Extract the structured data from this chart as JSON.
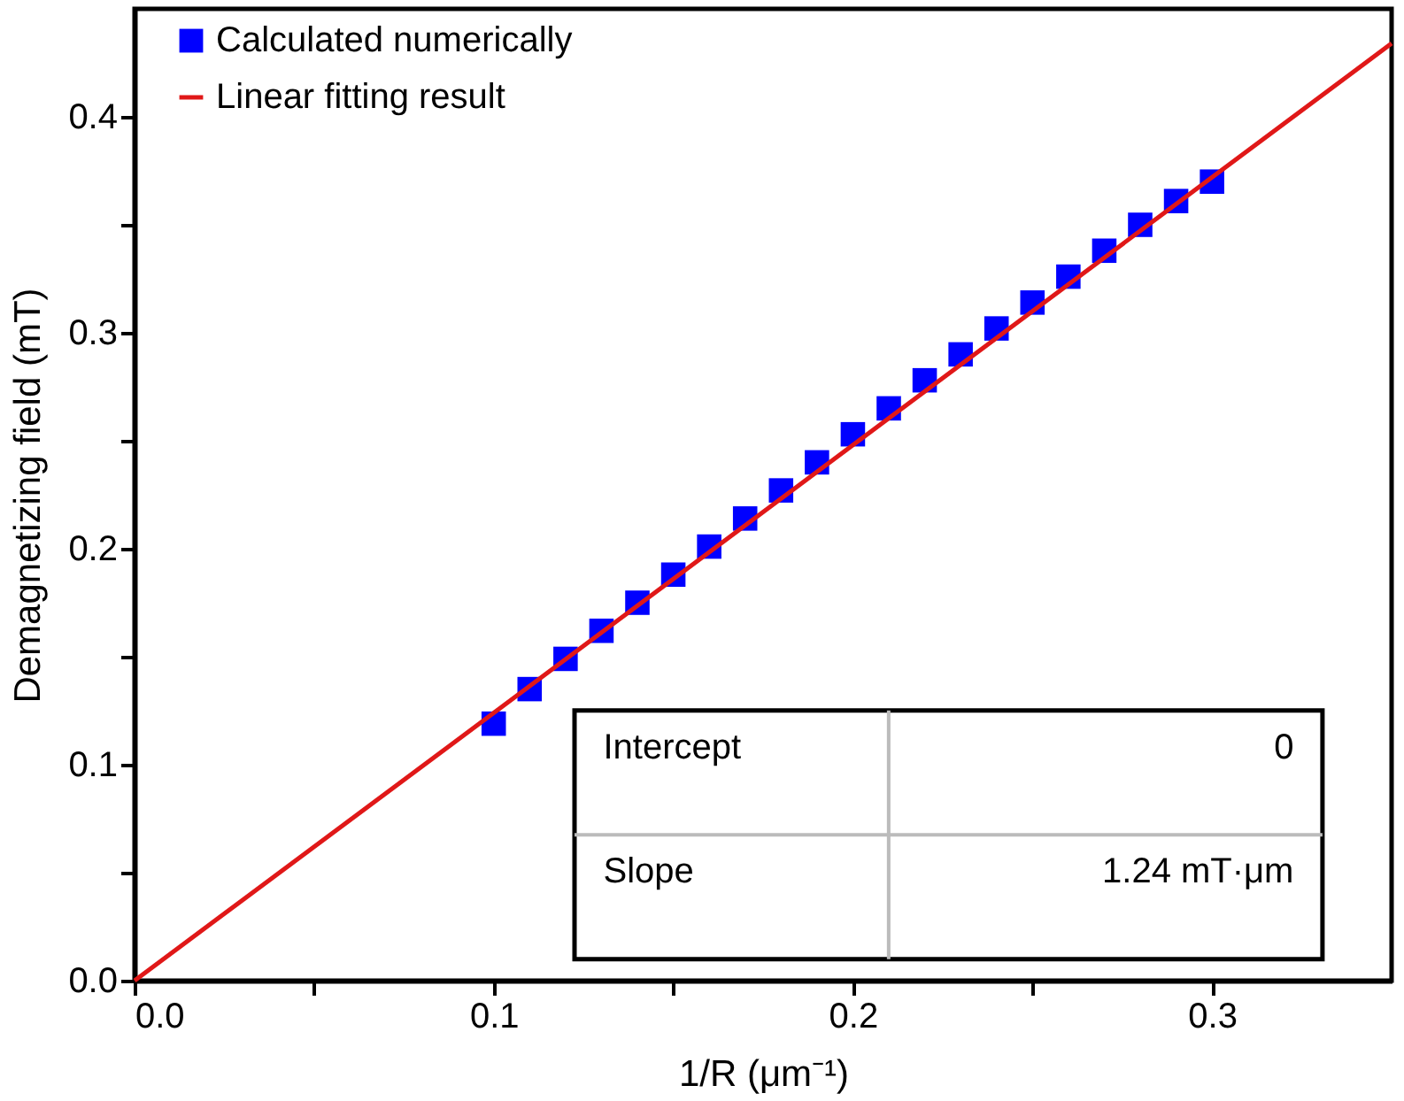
{
  "chart_data": {
    "type": "scatter",
    "xlabel": "1/R (μm⁻¹)",
    "ylabel": "Demagnetizing field (mT)",
    "xlim": [
      0,
      0.35
    ],
    "ylim": [
      0,
      0.45
    ],
    "xticks": [
      {
        "value": 0,
        "label": "0.0"
      },
      {
        "value": 0.05,
        "label": null
      },
      {
        "value": 0.1,
        "label": "0.1"
      },
      {
        "value": 0.15,
        "label": null
      },
      {
        "value": 0.2,
        "label": "0.2"
      },
      {
        "value": 0.25,
        "label": null
      },
      {
        "value": 0.3,
        "label": "0.3"
      }
    ],
    "yticks": [
      {
        "value": 0,
        "label": "0.0"
      },
      {
        "value": 0.05,
        "label": null
      },
      {
        "value": 0.1,
        "label": "0.1"
      },
      {
        "value": 0.15,
        "label": null
      },
      {
        "value": 0.2,
        "label": "0.2"
      },
      {
        "value": 0.25,
        "label": null
      },
      {
        "value": 0.3,
        "label": "0.3"
      },
      {
        "value": 0.35,
        "label": null
      },
      {
        "value": 0.4,
        "label": "0.4"
      }
    ],
    "grid": false,
    "legend": "top left",
    "annotations": [
      "Intercept",
      "0",
      "Slope",
      "1.24 mT·μm"
    ],
    "series": [
      {
        "name": "Calculated numerically",
        "marker": "square",
        "color": "#0000ff",
        "x": [
          0.1,
          0.11,
          0.12,
          0.13,
          0.14,
          0.15,
          0.16,
          0.17,
          0.18,
          0.19,
          0.2,
          0.21,
          0.22,
          0.23,
          0.24,
          0.25,
          0.26,
          0.27,
          0.28,
          0.29,
          0.3
        ],
        "values": [
          0.119,
          0.135,
          0.149,
          0.162,
          0.175,
          0.188,
          0.201,
          0.214,
          0.227,
          0.24,
          0.253,
          0.265,
          0.278,
          0.29,
          0.302,
          0.314,
          0.326,
          0.338,
          0.35,
          0.361,
          0.37
        ]
      },
      {
        "name": "Linear fitting result",
        "type": "line",
        "line_style": "solid",
        "color": "#e01818",
        "x": [
          0,
          0.35
        ],
        "values": [
          0,
          0.434
        ]
      }
    ]
  }
}
